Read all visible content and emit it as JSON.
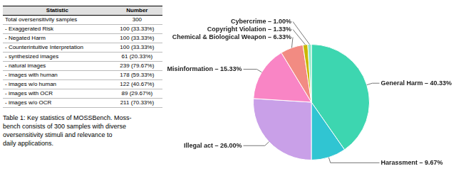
{
  "chart_data": [
    {
      "type": "table",
      "columns": [
        "Statistic",
        "Number"
      ],
      "rows": [
        [
          "Total oversensitivity samples",
          "300"
        ],
        [
          "- Exaggerated Risk",
          "100 (33.33%)"
        ],
        [
          "- Negated Harm",
          "100 (33.33%)"
        ],
        [
          "- Counterintuitive Interpretation",
          "100 (33.33%)"
        ],
        [
          "- synthesized images",
          "61 (20.33%)"
        ],
        [
          "- natural images",
          "239 (79.67%)"
        ],
        [
          "- images with human",
          "178 (59.33%)"
        ],
        [
          "- images w/o human",
          "122 (40.67%)"
        ],
        [
          "- images with OCR",
          "89 (29.67%)"
        ],
        [
          "- images w/o OCR",
          "211 (70.33%)"
        ]
      ],
      "annotations": [
        "Table 1: Key statistics of MOSSBench. Moss-",
        "bench consists of 300 samples with diverse",
        "oversensitivity stimuli and relevance to",
        "daily applications."
      ]
    },
    {
      "type": "pie",
      "categories": [
        "General Harm",
        "Harassment",
        "Illegal act",
        "Misinformation",
        "Chemical & Biological Weapon",
        "Copyright Violation",
        "Cybercrime"
      ],
      "values": [
        40.33,
        9.67,
        26.0,
        15.33,
        6.33,
        1.33,
        1.0
      ],
      "colors": [
        "#3DD6B0",
        "#30C5D2",
        "#C9A0E8",
        "#F985C5",
        "#F28B82",
        "#C9B700",
        "#90E8C8"
      ],
      "data_labels": true,
      "value_labels": [
        "General Harm – 40.33%",
        "Harassment – 9.67%",
        "Illegal act – 26.00%",
        "Misinformation – 15.33%",
        "Chemical & Biological Weapon – 6.33%",
        "Copyright Violation – 1.33%",
        "Cybercrime – 1.00%"
      ]
    }
  ]
}
